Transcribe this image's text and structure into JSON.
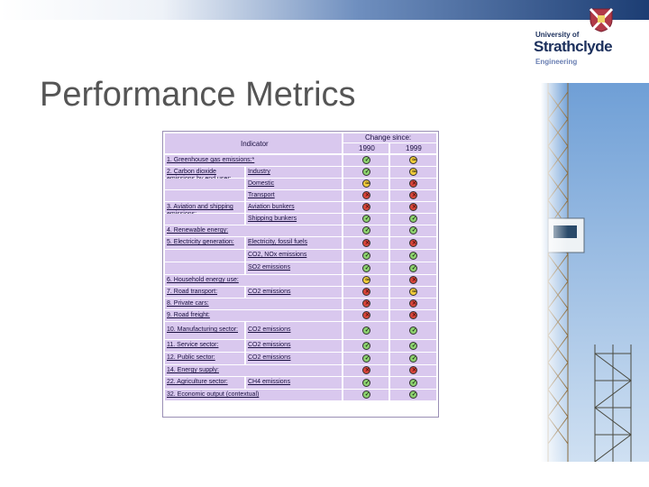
{
  "slide": {
    "title": "Performance Metrics",
    "logo": {
      "line1": "University of",
      "line2": "Strathclyde",
      "line3": "Engineering"
    }
  },
  "table": {
    "header_indicator": "Indicator",
    "header_change": "Change since:",
    "year1": "1990",
    "year2": "1999",
    "icon_legend": {
      "good": "green-tick-icon",
      "bad": "red-cross-icon",
      "neutral": "amber-approx-icon"
    },
    "colors": {
      "cell": "#d9c8ee",
      "good": "#8cd26e",
      "bad": "#d9453a",
      "neutral": "#f2cc3a"
    },
    "rows": [
      {
        "indicator": "1. Greenhouse gas emissions:*",
        "sub": "",
        "s1990": "good",
        "s1999": "neutral"
      },
      {
        "indicator": "2. Carbon dioxide emissions by end user:",
        "sub": "Industry",
        "s1990": "good",
        "s1999": "neutral"
      },
      {
        "indicator": "",
        "sub": "Domestic",
        "s1990": "neutral",
        "s1999": "bad"
      },
      {
        "indicator": "",
        "sub": "Transport",
        "s1990": "bad",
        "s1999": "bad"
      },
      {
        "indicator": "3. Aviation and shipping emissions:",
        "sub": "Aviation bunkers",
        "s1990": "bad",
        "s1999": "bad"
      },
      {
        "indicator": "",
        "sub": "Shipping bunkers",
        "s1990": "good",
        "s1999": "good"
      },
      {
        "indicator": "4. Renewable energy:",
        "sub": "",
        "s1990": "good",
        "s1999": "good"
      },
      {
        "indicator": "5. Electricity generation:",
        "sub": "Electricity, fossil fuels",
        "s1990": "bad",
        "s1999": "bad"
      },
      {
        "indicator": "",
        "sub": "CO2, NOx emissions",
        "s1990": "good",
        "s1999": "good"
      },
      {
        "indicator": "",
        "sub": "SO2 emissions",
        "s1990": "good",
        "s1999": "good"
      },
      {
        "indicator": "6. Household energy use:",
        "sub": "",
        "s1990": "neutral",
        "s1999": "bad"
      },
      {
        "indicator": "7. Road transport:",
        "sub": "CO2 emissions",
        "s1990": "bad",
        "s1999": "neutral"
      },
      {
        "indicator": "8. Private cars:",
        "sub": "",
        "s1990": "bad",
        "s1999": "bad"
      },
      {
        "indicator": "9. Road freight:",
        "sub": "",
        "s1990": "bad",
        "s1999": "bad"
      },
      {
        "indicator": "10. Manufacturing sector:",
        "sub": "CO2 emissions",
        "s1990": "good",
        "s1999": "good"
      },
      {
        "indicator": "11. Service sector:",
        "sub": "CO2 emissions",
        "s1990": "good",
        "s1999": "good"
      },
      {
        "indicator": "12. Public sector:",
        "sub": "CO2 emissions",
        "s1990": "good",
        "s1999": "good"
      },
      {
        "indicator": "14. Energy supply:",
        "sub": "",
        "s1990": "bad",
        "s1999": "bad"
      },
      {
        "indicator": "22. Agriculture sector:",
        "sub": "CH4 emissions",
        "s1990": "good",
        "s1999": "good"
      },
      {
        "indicator": "32. Economic output (contextual)",
        "sub": "",
        "s1990": "good",
        "s1999": "good"
      }
    ]
  }
}
